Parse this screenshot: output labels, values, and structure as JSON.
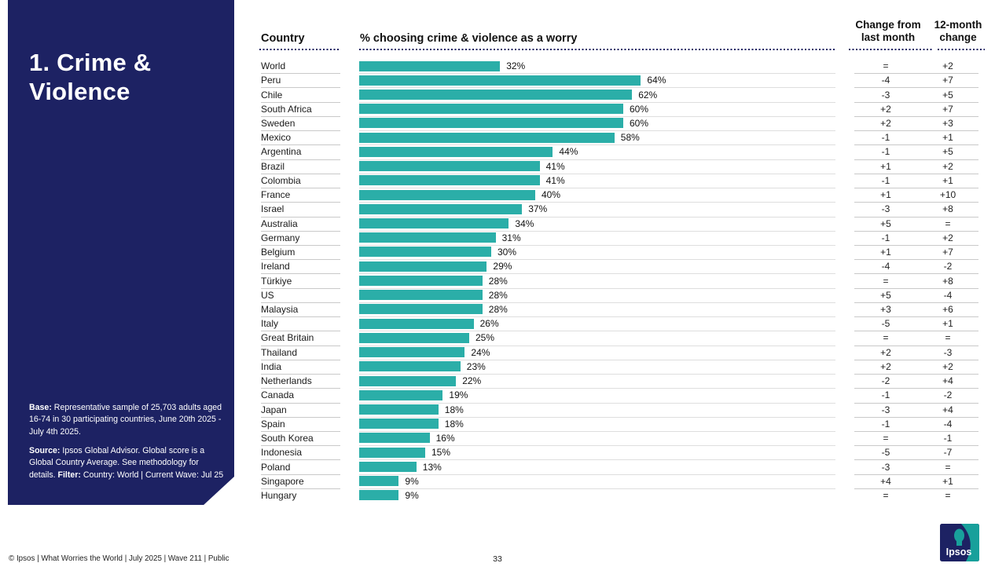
{
  "page": {
    "footer_copyright": "© Ipsos | What Worries the World | July 2025 | Wave 211 | Public",
    "page_number": "33",
    "brand": "Ipsos"
  },
  "colors": {
    "navy": "#1D2263",
    "teal_bar": "#2BAEA8",
    "logo_teal": "#18A09B"
  },
  "sidebar": {
    "title": "1. Crime & Violence",
    "notes": [
      [
        {
          "t": "Base:",
          "b": true
        },
        {
          "t": " Representative sample of 25,703 adults aged 16-74 in 30 participating countries, June 20th 2025 - July 4th 2025.",
          "b": false
        }
      ],
      [
        {
          "t": "Source:",
          "b": true
        },
        {
          "t": " Ipsos Global Advisor. Global score is a Global Country Average. See methodology for details. ",
          "b": false
        },
        {
          "t": "Filter:",
          "b": true
        },
        {
          "t": " Country: World | Current Wave: Jul 25",
          "b": false
        }
      ]
    ]
  },
  "table_headers": {
    "country": "Country",
    "bar": "% choosing crime & violence as a worry",
    "change_month": "Change from last month",
    "change_year": "12-month change"
  },
  "chart_data": {
    "type": "bar",
    "orientation": "horizontal",
    "title": "1. Crime & Violence",
    "value_label": "% choosing crime & violence as a worry",
    "xlim": [
      0,
      100
    ],
    "bar_color": "#2BAEA8",
    "grid": false,
    "categories": [
      "World",
      "Peru",
      "Chile",
      "South Africa",
      "Sweden",
      "Mexico",
      "Argentina",
      "Brazil",
      "Colombia",
      "France",
      "Israel",
      "Australia",
      "Germany",
      "Belgium",
      "Ireland",
      "Türkiye",
      "US",
      "Malaysia",
      "Italy",
      "Great Britain",
      "Thailand",
      "India",
      "Netherlands",
      "Canada",
      "Japan",
      "Spain",
      "South Korea",
      "Indonesia",
      "Poland",
      "Singapore",
      "Hungary"
    ],
    "values": [
      32,
      64,
      62,
      60,
      60,
      58,
      44,
      41,
      41,
      40,
      37,
      34,
      31,
      30,
      29,
      28,
      28,
      28,
      26,
      25,
      24,
      23,
      22,
      19,
      18,
      18,
      16,
      15,
      13,
      9,
      9
    ],
    "change_from_last_month": [
      "=",
      "-4",
      "-3",
      "+2",
      "+2",
      "-1",
      "-1",
      "+1",
      "-1",
      "+1",
      "-3",
      "+5",
      "-1",
      "+1",
      "-4",
      "=",
      "+5",
      "+3",
      "-5",
      "=",
      "+2",
      "+2",
      "-2",
      "-1",
      "-3",
      "-1",
      "=",
      "-5",
      "-3",
      "+4",
      "="
    ],
    "change_12_month": [
      "+2",
      "+7",
      "+5",
      "+7",
      "+3",
      "+1",
      "+5",
      "+2",
      "+1",
      "+10",
      "+8",
      "=",
      "+2",
      "+7",
      "-2",
      "+8",
      "-4",
      "+6",
      "+1",
      "=",
      "-3",
      "+2",
      "+4",
      "-2",
      "+4",
      "-4",
      "-1",
      "-7",
      "=",
      "+1",
      "="
    ]
  }
}
